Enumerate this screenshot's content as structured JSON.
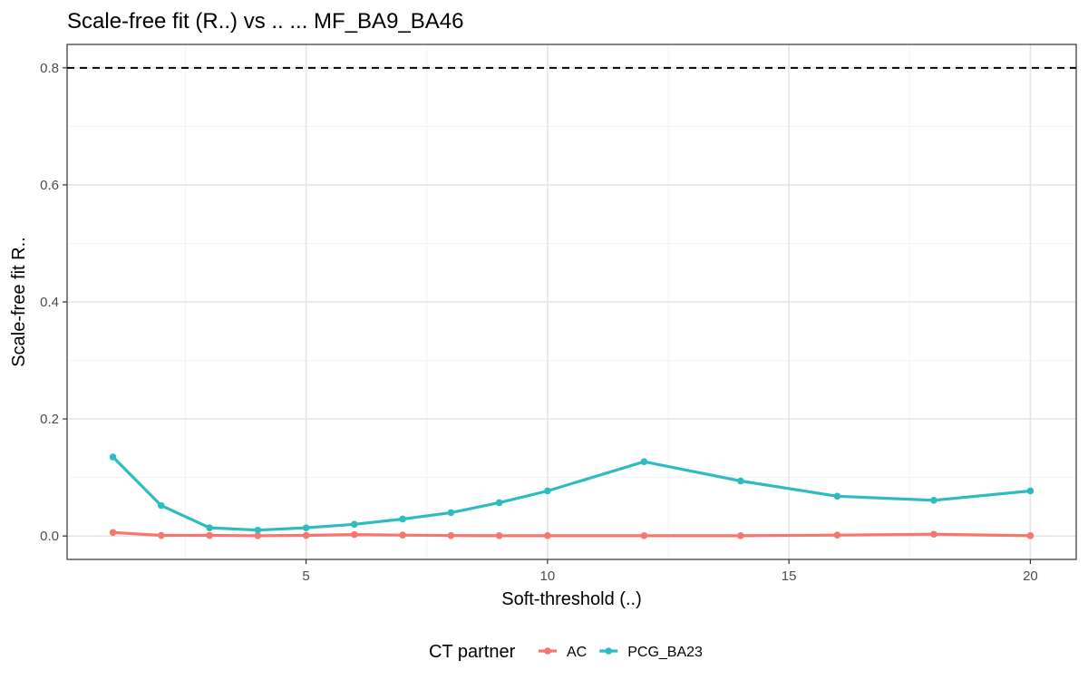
{
  "chart_data": {
    "type": "line",
    "title": "Scale-free fit (R..) vs .. ... MF_BA9_BA46",
    "xlabel": "Soft-threshold (..)",
    "ylabel": "Scale-free fit R..",
    "xlim": [
      0.05,
      20.95
    ],
    "ylim": [
      -0.04,
      0.84
    ],
    "xticks": [
      5,
      10,
      15,
      20
    ],
    "yticks": [
      0.0,
      0.2,
      0.4,
      0.6,
      0.8
    ],
    "x_minor": [
      2.5,
      7.5,
      12.5,
      17.5
    ],
    "y_minor": [
      0.1,
      0.3,
      0.5,
      0.7
    ],
    "reference_line": {
      "y": 0.8,
      "style": "dashed",
      "color": "#000000"
    },
    "grid": true,
    "legend": {
      "title": "CT partner",
      "position": "bottom"
    },
    "x": [
      1,
      2,
      3,
      4,
      5,
      6,
      7,
      8,
      9,
      10,
      12,
      14,
      16,
      18,
      20
    ],
    "series": [
      {
        "name": "AC",
        "color": "#F8766D",
        "values": [
          0.006,
          0.001,
          0.001,
          0.0005,
          0.001,
          0.0025,
          0.0015,
          0.0008,
          0.0005,
          0.0005,
          0.0005,
          0.0005,
          0.0015,
          0.003,
          0.0005
        ]
      },
      {
        "name": "PCG_BA23",
        "color": "#2EBCC0",
        "values": [
          0.135,
          0.052,
          0.014,
          0.01,
          0.014,
          0.02,
          0.029,
          0.04,
          0.057,
          0.077,
          0.127,
          0.094,
          0.068,
          0.061,
          0.077
        ]
      }
    ]
  }
}
